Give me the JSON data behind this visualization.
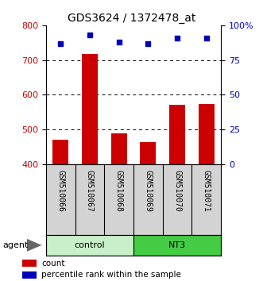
{
  "title": "GDS3624 / 1372478_at",
  "samples": [
    "GSM510066",
    "GSM510067",
    "GSM510068",
    "GSM510069",
    "GSM510070",
    "GSM510071"
  ],
  "counts": [
    470,
    718,
    490,
    463,
    572,
    574
  ],
  "percentiles": [
    87,
    93,
    88,
    87,
    91,
    91
  ],
  "groups": [
    "control",
    "control",
    "control",
    "NT3",
    "NT3",
    "NT3"
  ],
  "control_color": "#C8F0C8",
  "nt3_color": "#44CC44",
  "bar_color": "#CC0000",
  "dot_color": "#0000BB",
  "ylim_left": [
    400,
    800
  ],
  "ylim_right": [
    0,
    100
  ],
  "yticks_left": [
    400,
    500,
    600,
    700,
    800
  ],
  "yticks_right": [
    0,
    25,
    50,
    75,
    100
  ],
  "right_tick_labels": [
    "0",
    "25",
    "50",
    "75",
    "100%"
  ],
  "grid_yticks": [
    500,
    600,
    700
  ],
  "background_color": "#ffffff",
  "legend_items": [
    "count",
    "percentile rank within the sample"
  ],
  "legend_colors": [
    "#CC0000",
    "#0000BB"
  ],
  "agent_label": "agent",
  "label_bg": "#D3D3D3",
  "title_fontsize": 10,
  "axis_fontsize": 8,
  "label_fontsize": 7
}
